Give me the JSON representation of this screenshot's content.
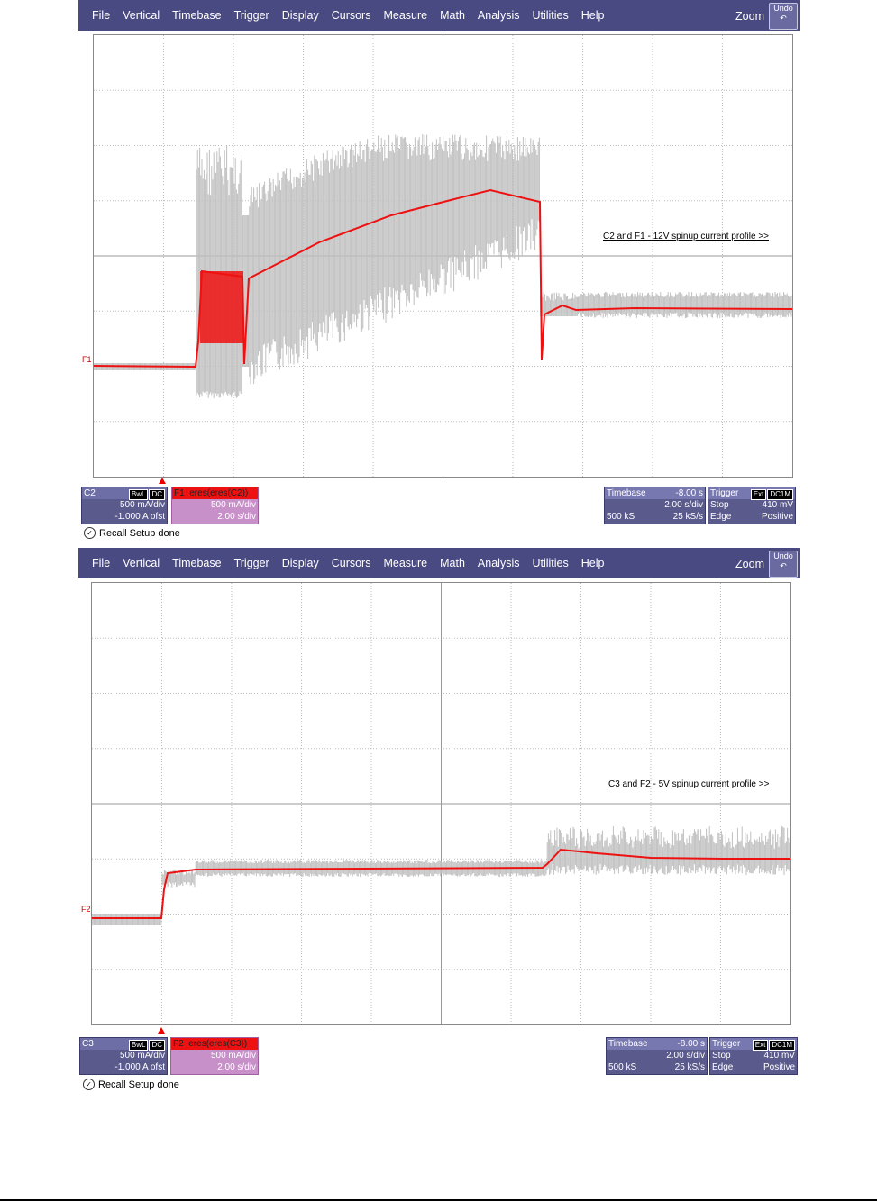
{
  "menu": [
    "File",
    "Vertical",
    "Timebase",
    "Trigger",
    "Display",
    "Cursors",
    "Measure",
    "Math",
    "Analysis",
    "Utilities",
    "Help"
  ],
  "zoom_label": "Zoom",
  "undo_label": "Undo",
  "colors": {
    "menubar": "#4a4a82",
    "trace_raw": "#bfbfbf",
    "trace_math": "#ee1111"
  },
  "scopes": [
    {
      "annotation": "C2 and F1 - 12V spinup current profile >>",
      "math_label": "F1",
      "channel": {
        "name": "C2",
        "tags": [
          "BwL",
          "DC"
        ],
        "scale": "500 mA/div",
        "offset": "-1.000 A ofst"
      },
      "function": {
        "name": "F1",
        "expr": "eres(eres(C2))",
        "scale": "500 mA/div",
        "timebase": "2.00 s/div"
      },
      "timebase": {
        "label": "Timebase",
        "delay": "-8.00 s",
        "sdiv": "2.00 s/div",
        "samples": "500 kS",
        "rate": "25 kS/s"
      },
      "trigger": {
        "label": "Trigger",
        "tags": [
          "Ext",
          "DC1M"
        ],
        "mode": "Stop",
        "level": "410 mV",
        "type": "Edge",
        "slope": "Positive"
      },
      "status": "Recall Setup done"
    },
    {
      "annotation": "C3 and F2 - 5V spinup current profile >>",
      "math_label": "F2",
      "channel": {
        "name": "C3",
        "tags": [
          "BwL",
          "DC"
        ],
        "scale": "500 mA/div",
        "offset": "-1.000 A ofst"
      },
      "function": {
        "name": "F2",
        "expr": "eres(eres(C3))",
        "scale": "500 mA/div",
        "timebase": "2.00 s/div"
      },
      "timebase": {
        "label": "Timebase",
        "delay": "-8.00 s",
        "sdiv": "2.00 s/div",
        "samples": "500 kS",
        "rate": "25 kS/s"
      },
      "trigger": {
        "label": "Trigger",
        "tags": [
          "Ext",
          "DC1M"
        ],
        "mode": "Stop",
        "level": "410 mV",
        "type": "Edge",
        "slope": "Positive"
      },
      "status": "Recall Setup done"
    }
  ]
}
